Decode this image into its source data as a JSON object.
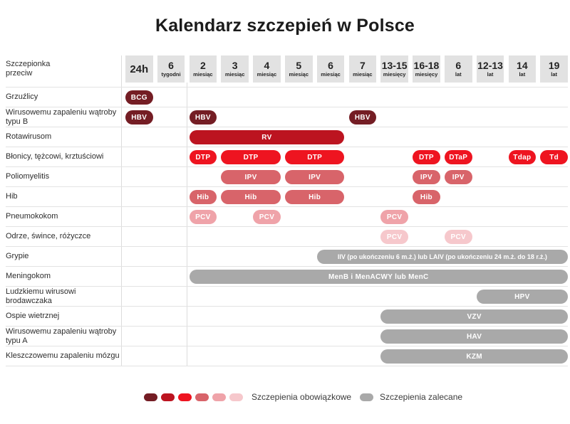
{
  "title": "Kalendarz szczepień w Polsce",
  "header": {
    "corner": [
      "Szczepionka",
      "przeciw"
    ]
  },
  "palette": {
    "s1": "#741d24",
    "s2": "#bc1420",
    "s3": "#ee1420",
    "s4": "#d8646a",
    "s5": "#efa3a9",
    "s6": "#f6c8cc",
    "recommended": "#a9a9a9",
    "header_bg": "#e2e2e2"
  },
  "legend": {
    "mandatory_label": "Szczepienia obowiązkowe",
    "mandatory_swatches": [
      "s1",
      "s2",
      "s3",
      "s4",
      "s5",
      "s6"
    ],
    "recommended_label": "Szczepienia zalecane"
  },
  "chart_data": {
    "type": "table",
    "title": "Kalendarz szczepień w Polsce",
    "corner_label": "Szczepionka przeciw",
    "columns": [
      {
        "value": "24h",
        "unit": ""
      },
      {
        "value": "6",
        "unit": "tygodni"
      },
      {
        "value": "2",
        "unit": "miesiąc"
      },
      {
        "value": "3",
        "unit": "miesiąc"
      },
      {
        "value": "4",
        "unit": "miesiąc"
      },
      {
        "value": "5",
        "unit": "miesiąc"
      },
      {
        "value": "6",
        "unit": "miesiąc"
      },
      {
        "value": "7",
        "unit": "miesiąc"
      },
      {
        "value": "13-15",
        "unit": "miesięcy"
      },
      {
        "value": "16-18",
        "unit": "miesięcy"
      },
      {
        "value": "6",
        "unit": "lat"
      },
      {
        "value": "12-13",
        "unit": "lat"
      },
      {
        "value": "14",
        "unit": "lat"
      },
      {
        "value": "19",
        "unit": "lat"
      }
    ],
    "rows": [
      {
        "label": "Grzuźlicy",
        "entries": [
          {
            "text": "BCG",
            "start": 0,
            "end": 0,
            "shade": "s1"
          }
        ]
      },
      {
        "label": "Wirusowemu zapaleniu wątroby typu B",
        "entries": [
          {
            "text": "HBV",
            "start": 0,
            "end": 0,
            "shade": "s1"
          },
          {
            "text": "HBV",
            "start": 2,
            "end": 2,
            "shade": "s1"
          },
          {
            "text": "HBV",
            "start": 7,
            "end": 7,
            "shade": "s1"
          }
        ]
      },
      {
        "label": "Rotawirusom",
        "entries": [
          {
            "text": "RV",
            "start": 2,
            "end": 6,
            "shade": "s2"
          }
        ]
      },
      {
        "label": "Błonicy, tężcowi, krztuściowi",
        "entries": [
          {
            "text": "DTP",
            "start": 2,
            "end": 2,
            "shade": "s3"
          },
          {
            "text": "DTP",
            "start": 3,
            "end": 4,
            "shade": "s3"
          },
          {
            "text": "DTP",
            "start": 5,
            "end": 6,
            "shade": "s3"
          },
          {
            "text": "DTP",
            "start": 9,
            "end": 9,
            "shade": "s3"
          },
          {
            "text": "DTaP",
            "start": 10,
            "end": 10,
            "shade": "s3"
          },
          {
            "text": "Tdap",
            "start": 12,
            "end": 12,
            "shade": "s3"
          },
          {
            "text": "Td",
            "start": 13,
            "end": 13,
            "shade": "s3"
          }
        ]
      },
      {
        "label": "Poliomyelitis",
        "entries": [
          {
            "text": "IPV",
            "start": 3,
            "end": 4,
            "shade": "s4"
          },
          {
            "text": "IPV",
            "start": 5,
            "end": 6,
            "shade": "s4"
          },
          {
            "text": "IPV",
            "start": 9,
            "end": 9,
            "shade": "s4"
          },
          {
            "text": "IPV",
            "start": 10,
            "end": 10,
            "shade": "s4"
          }
        ]
      },
      {
        "label": "Hib",
        "entries": [
          {
            "text": "Hib",
            "start": 2,
            "end": 2,
            "shade": "s4"
          },
          {
            "text": "Hib",
            "start": 3,
            "end": 4,
            "shade": "s4"
          },
          {
            "text": "Hib",
            "start": 5,
            "end": 6,
            "shade": "s4"
          },
          {
            "text": "Hib",
            "start": 9,
            "end": 9,
            "shade": "s4"
          }
        ]
      },
      {
        "label": "Pneumokokom",
        "entries": [
          {
            "text": "PCV",
            "start": 2,
            "end": 2,
            "shade": "s5"
          },
          {
            "text": "PCV",
            "start": 4,
            "end": 4,
            "shade": "s5"
          },
          {
            "text": "PCV",
            "start": 8,
            "end": 8,
            "shade": "s5"
          }
        ]
      },
      {
        "label": "Odrze, śwince, różyczce",
        "entries": [
          {
            "text": "PCV",
            "start": 8,
            "end": 8,
            "shade": "s6"
          },
          {
            "text": "PCV",
            "start": 10,
            "end": 10,
            "shade": "s6"
          }
        ]
      },
      {
        "label": "Grypie",
        "entries": [
          {
            "text": "IIV (po ukończeniu 6 m.ż.) lub LAIV (po ukończeniu 24 m.ż. do 18 r.ż.)",
            "start": 6,
            "end": 13,
            "shade": "recommended"
          }
        ]
      },
      {
        "label": "Meningokom",
        "entries": [
          {
            "text": "MenB i MenACWY lub MenC",
            "start": 2,
            "end": 13,
            "shade": "recommended"
          }
        ]
      },
      {
        "label": "Ludzkiemu wirusowi brodawczaka",
        "entries": [
          {
            "text": "HPV",
            "start": 11,
            "end": 13,
            "shade": "recommended"
          }
        ]
      },
      {
        "label": "Ospie wietrznej",
        "entries": [
          {
            "text": "VZV",
            "start": 8,
            "end": 13,
            "shade": "recommended"
          }
        ]
      },
      {
        "label": "Wirusowemu zapaleniu wątroby typu A",
        "entries": [
          {
            "text": "HAV",
            "start": 8,
            "end": 13,
            "shade": "recommended"
          }
        ]
      },
      {
        "label": "Kleszczowemu zapaleniu mózgu",
        "entries": [
          {
            "text": "KZM",
            "start": 8,
            "end": 13,
            "shade": "recommended"
          }
        ]
      }
    ],
    "legend_position": "bottom"
  }
}
